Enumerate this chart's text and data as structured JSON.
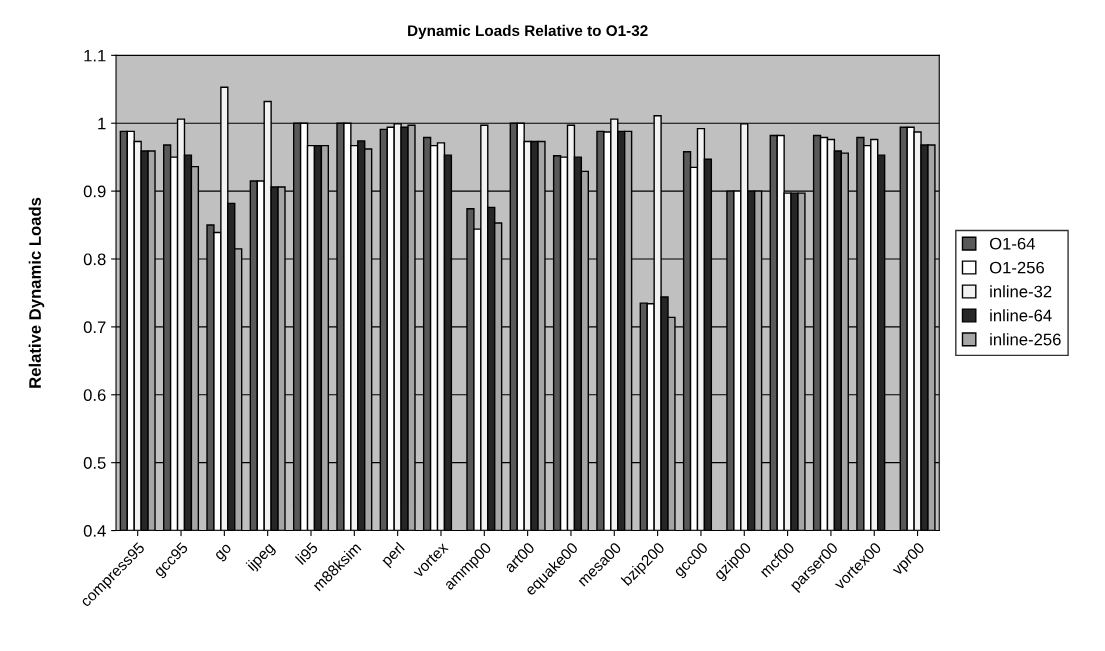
{
  "chart_data": {
    "type": "bar",
    "title": "Dynamic Loads Relative to O1-32",
    "ylabel": "Relative Dynamic Loads",
    "categories": [
      "compress95",
      "gcc95",
      "go",
      "ijpeg",
      "li95",
      "m88ksim",
      "perl",
      "vortex",
      "ammp00",
      "art00",
      "equake00",
      "mesa00",
      "bzip200",
      "gcc00",
      "gzip00",
      "mcf00",
      "parser00",
      "vortex00",
      "vpr00"
    ],
    "series": [
      {
        "name": "O1-64",
        "color": "#595959",
        "values": [
          0.988,
          0.968,
          0.85,
          0.915,
          1.0,
          1.0,
          0.991,
          0.979,
          0.874,
          1.0,
          0.952,
          0.988,
          0.735,
          0.958,
          0.9,
          0.982,
          0.982,
          0.979,
          0.994
        ]
      },
      {
        "name": "O1-256",
        "color": "#ffffff",
        "values": [
          0.988,
          0.95,
          0.839,
          0.915,
          1.0,
          1.0,
          0.994,
          0.967,
          0.844,
          1.0,
          0.95,
          0.987,
          0.734,
          0.935,
          0.9,
          0.982,
          0.979,
          0.967,
          0.994
        ]
      },
      {
        "name": "inline-32",
        "color": "#f2f2f2",
        "values": [
          0.973,
          1.006,
          1.053,
          1.032,
          0.967,
          0.967,
          0.999,
          0.971,
          0.997,
          0.973,
          0.997,
          1.006,
          1.011,
          0.992,
          0.999,
          0.897,
          0.976,
          0.976,
          0.987
        ]
      },
      {
        "name": "inline-64",
        "color": "#262626",
        "values": [
          0.959,
          0.953,
          0.882,
          0.906,
          0.967,
          0.974,
          0.994,
          0.953,
          0.876,
          0.973,
          0.95,
          0.988,
          0.744,
          0.947,
          0.9,
          0.897,
          0.959,
          0.953,
          0.968
        ]
      },
      {
        "name": "inline-256",
        "color": "#a6a6a6",
        "values": [
          0.959,
          0.936,
          0.815,
          0.906,
          0.967,
          0.962,
          0.997,
          null,
          0.853,
          0.973,
          0.929,
          0.988,
          0.714,
          null,
          0.9,
          0.897,
          0.956,
          null,
          0.968
        ]
      }
    ],
    "ylim": [
      0.4,
      1.1
    ],
    "yticks": [
      0.4,
      0.5,
      0.6,
      0.7,
      0.8,
      0.9,
      1,
      1.1
    ],
    "grid": "y",
    "legend": "right"
  }
}
